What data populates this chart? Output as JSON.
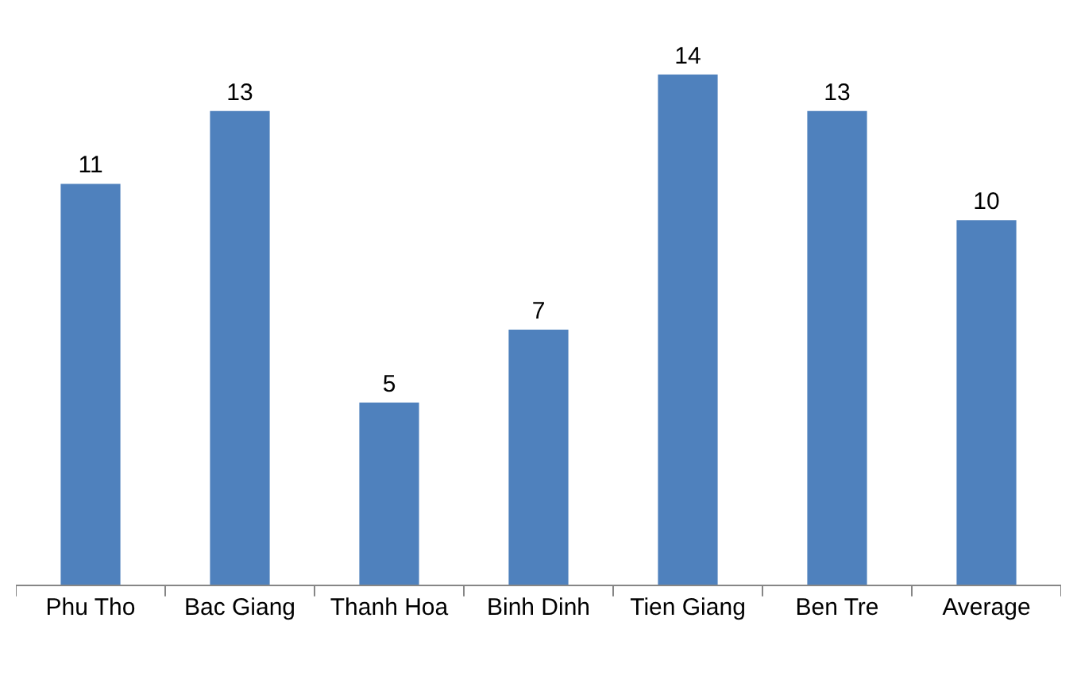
{
  "chart_data": {
    "type": "bar",
    "categories": [
      "Phu Tho",
      "Bac Giang",
      "Thanh Hoa",
      "Binh Dinh",
      "Tien Giang",
      "Ben Tre",
      "Average"
    ],
    "values": [
      11,
      13,
      5,
      7,
      14,
      13,
      10
    ],
    "color": "#4f81bd",
    "data_labels": true,
    "grid": false,
    "legend": false,
    "tick_labels": "x"
  }
}
